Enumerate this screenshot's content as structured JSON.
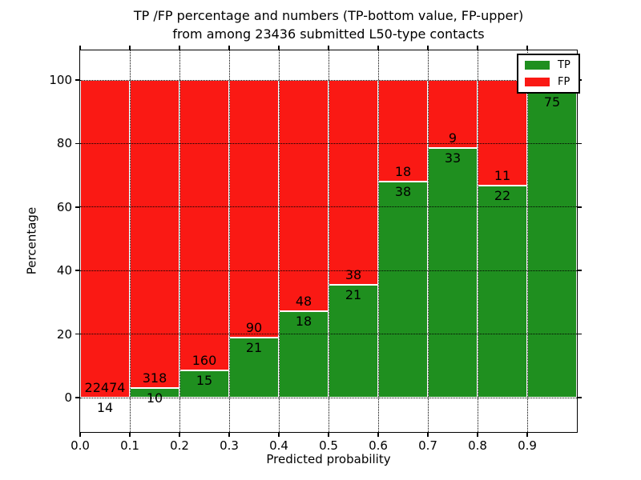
{
  "title": {
    "line1": "TP /FP percentage and numbers (TP-bottom value, FP-upper)",
    "line2": "from among 23436 submitted L50-type contacts"
  },
  "chart_data": {
    "type": "bar",
    "stacked": true,
    "title": "TP /FP percentage and numbers (TP-bottom value, FP-upper) from among 23436 submitted L50-type contacts",
    "xlabel": "Predicted probability",
    "ylabel": "Percentage",
    "total_submitted_contacts": 23436,
    "x_ticks": [
      "0.0",
      "0.1",
      "0.2",
      "0.3",
      "0.4",
      "0.5",
      "0.6",
      "0.7",
      "0.8",
      "0.9"
    ],
    "y_ticks": [
      0,
      20,
      40,
      60,
      80,
      100
    ],
    "xlim": [
      0.0,
      1.0
    ],
    "ylim": [
      -11,
      110
    ],
    "grid": "dotted-black-both-axes",
    "bar_total_pct": 100,
    "legend": {
      "position": "upper right",
      "entries": [
        {
          "label": "TP",
          "color": "#1f8f1f"
        },
        {
          "label": "FP",
          "color": "#fa1914"
        }
      ]
    },
    "bins": [
      {
        "range": [
          0.0,
          0.1
        ],
        "tp": 14,
        "fp": 22474,
        "tp_pct": 0.06
      },
      {
        "range": [
          0.1,
          0.2
        ],
        "tp": 10,
        "fp": 318,
        "tp_pct": 3.0
      },
      {
        "range": [
          0.2,
          0.3
        ],
        "tp": 15,
        "fp": 160,
        "tp_pct": 8.6
      },
      {
        "range": [
          0.3,
          0.4
        ],
        "tp": 21,
        "fp": 90,
        "tp_pct": 18.9
      },
      {
        "range": [
          0.4,
          0.5
        ],
        "tp": 18,
        "fp": 48,
        "tp_pct": 27.3
      },
      {
        "range": [
          0.5,
          0.6
        ],
        "tp": 21,
        "fp": 38,
        "tp_pct": 35.6
      },
      {
        "range": [
          0.6,
          0.7
        ],
        "tp": 38,
        "fp": 18,
        "tp_pct": 67.9
      },
      {
        "range": [
          0.7,
          0.8
        ],
        "tp": 33,
        "fp": 9,
        "tp_pct": 78.6
      },
      {
        "range": [
          0.8,
          0.9
        ],
        "tp": 22,
        "fp": 11,
        "tp_pct": 66.7
      },
      {
        "range": [
          0.9,
          1.0
        ],
        "tp": 75,
        "fp": null,
        "tp_pct": 96.2,
        "fp_label_hidden_behind_legend": true
      }
    ],
    "colors": {
      "tp": "#1f8f1f",
      "fp": "#fa1914",
      "edge": "#ffffff",
      "grid": "#000000",
      "text": "#000000",
      "background": "#ffffff"
    }
  }
}
